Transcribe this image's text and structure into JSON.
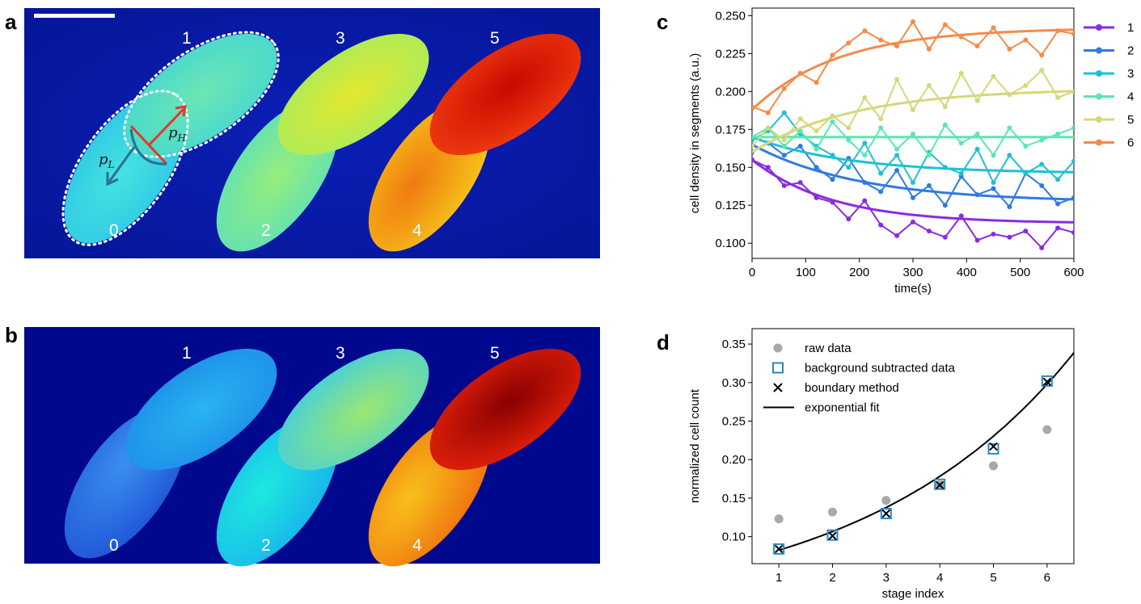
{
  "panels": {
    "a": {
      "label": "a",
      "segments": [
        "0",
        "1",
        "2",
        "3",
        "4",
        "5"
      ],
      "arrow_low": {
        "text": "p",
        "sub": "L"
      },
      "arrow_high": {
        "text": "p",
        "sub": "H"
      },
      "colors": [
        "#38d7e2",
        "#4fe0c6",
        "#7ef08c",
        "#c6f04a",
        "#f4a019",
        "#dc2c0c"
      ]
    },
    "b": {
      "label": "b",
      "segments": [
        "0",
        "1",
        "2",
        "3",
        "4",
        "5"
      ],
      "colors": [
        "#2b6ee8",
        "#22a2f0",
        "#19cee0",
        "#86e68a",
        "#f7b20f",
        "#c10c00"
      ]
    }
  },
  "chart_data": [
    {
      "panel": "c",
      "type": "line",
      "title": "",
      "xlabel": "time(s)",
      "ylabel": "cell density in segments (a.u.)",
      "xlim": [
        0,
        600
      ],
      "ylim": [
        0.09,
        0.255
      ],
      "xticks": [
        "0",
        "100",
        "200",
        "300",
        "400",
        "500",
        "600"
      ],
      "yticks": [
        "0.100",
        "0.125",
        "0.150",
        "0.175",
        "0.200",
        "0.225",
        "0.250"
      ],
      "legend_position": "outside-right",
      "series": [
        {
          "name": "1",
          "color": "#8a2be2",
          "fit": {
            "start": 0.155,
            "end": 0.113,
            "tau": 150
          },
          "x": [
            0,
            30,
            60,
            90,
            120,
            150,
            180,
            210,
            240,
            270,
            300,
            330,
            360,
            390,
            420,
            450,
            480,
            510,
            540,
            570,
            600
          ],
          "values": [
            0.155,
            0.15,
            0.138,
            0.14,
            0.13,
            0.127,
            0.116,
            0.128,
            0.112,
            0.105,
            0.114,
            0.108,
            0.104,
            0.118,
            0.102,
            0.106,
            0.104,
            0.108,
            0.097,
            0.11,
            0.107
          ]
        },
        {
          "name": "2",
          "color": "#2f7ae0",
          "fit": {
            "start": 0.165,
            "end": 0.127,
            "tau": 200
          },
          "x": [
            0,
            30,
            60,
            90,
            120,
            150,
            180,
            210,
            240,
            270,
            300,
            330,
            360,
            390,
            420,
            450,
            480,
            510,
            540,
            570,
            600
          ],
          "values": [
            0.16,
            0.166,
            0.158,
            0.164,
            0.15,
            0.142,
            0.156,
            0.14,
            0.134,
            0.148,
            0.13,
            0.138,
            0.125,
            0.144,
            0.132,
            0.136,
            0.124,
            0.146,
            0.138,
            0.126,
            0.13
          ]
        },
        {
          "name": "3",
          "color": "#1fc0d6",
          "fit": {
            "start": 0.17,
            "end": 0.146,
            "tau": 180
          },
          "x": [
            0,
            30,
            60,
            90,
            120,
            150,
            180,
            210,
            240,
            270,
            300,
            330,
            360,
            390,
            420,
            450,
            480,
            510,
            540,
            570,
            600
          ],
          "values": [
            0.168,
            0.174,
            0.186,
            0.172,
            0.164,
            0.158,
            0.15,
            0.166,
            0.146,
            0.158,
            0.14,
            0.16,
            0.15,
            0.146,
            0.162,
            0.14,
            0.158,
            0.146,
            0.152,
            0.142,
            0.154
          ]
        },
        {
          "name": "4",
          "color": "#5ce6b2",
          "fit": {
            "start": 0.17,
            "end": 0.17,
            "tau": 200
          },
          "x": [
            0,
            30,
            60,
            90,
            120,
            150,
            180,
            210,
            240,
            270,
            300,
            330,
            360,
            390,
            420,
            450,
            480,
            510,
            540,
            570,
            600
          ],
          "values": [
            0.17,
            0.176,
            0.164,
            0.174,
            0.162,
            0.18,
            0.168,
            0.158,
            0.176,
            0.162,
            0.172,
            0.158,
            0.178,
            0.166,
            0.172,
            0.158,
            0.176,
            0.164,
            0.168,
            0.172,
            0.176
          ]
        },
        {
          "name": "5",
          "color": "#d4d87a",
          "fit": {
            "start": 0.16,
            "end": 0.202,
            "tau": 190
          },
          "x": [
            0,
            30,
            60,
            90,
            120,
            150,
            180,
            210,
            240,
            270,
            300,
            330,
            360,
            390,
            420,
            450,
            480,
            510,
            540,
            570,
            600
          ],
          "values": [
            0.164,
            0.176,
            0.168,
            0.182,
            0.174,
            0.184,
            0.176,
            0.196,
            0.182,
            0.208,
            0.188,
            0.204,
            0.19,
            0.212,
            0.194,
            0.21,
            0.198,
            0.204,
            0.214,
            0.196,
            0.2
          ]
        },
        {
          "name": "6",
          "color": "#f58a4a",
          "fit": {
            "start": 0.188,
            "end": 0.242,
            "tau": 160
          },
          "x": [
            0,
            30,
            60,
            90,
            120,
            150,
            180,
            210,
            240,
            270,
            300,
            330,
            360,
            390,
            420,
            450,
            480,
            510,
            540,
            570,
            600
          ],
          "values": [
            0.19,
            0.186,
            0.202,
            0.212,
            0.206,
            0.224,
            0.232,
            0.24,
            0.234,
            0.23,
            0.246,
            0.228,
            0.244,
            0.236,
            0.23,
            0.242,
            0.228,
            0.234,
            0.224,
            0.24,
            0.238
          ]
        }
      ]
    },
    {
      "panel": "d",
      "type": "scatter",
      "title": "",
      "xlabel": "stage index",
      "ylabel": "normalized cell count",
      "xlim": [
        0.5,
        6.5
      ],
      "ylim": [
        0.065,
        0.37
      ],
      "xticks": [
        "1",
        "2",
        "3",
        "4",
        "5",
        "6"
      ],
      "yticks": [
        "0.10",
        "0.15",
        "0.20",
        "0.25",
        "0.30",
        "0.35"
      ],
      "legend_position": "upper-left",
      "series": [
        {
          "name": "raw data",
          "marker": "circle",
          "color": "#a9a9a9",
          "x": [
            1,
            2,
            3,
            4,
            5,
            6
          ],
          "values": [
            0.123,
            0.132,
            0.147,
            0.167,
            0.192,
            0.239
          ]
        },
        {
          "name": "background subtracted data",
          "marker": "square",
          "color": "#2e86c1",
          "x": [
            1,
            2,
            3,
            4,
            5,
            6
          ],
          "values": [
            0.084,
            0.102,
            0.13,
            0.168,
            0.214,
            0.302
          ]
        },
        {
          "name": "boundary method",
          "marker": "x",
          "color": "#000000",
          "x": [
            1,
            2,
            3,
            4,
            5,
            6
          ],
          "values": [
            0.084,
            0.101,
            0.13,
            0.167,
            0.217,
            0.301
          ]
        }
      ],
      "fit": {
        "name": "exponential fit",
        "color": "#000000",
        "a": 0.0645,
        "b": 0.2568,
        "x_start": 1,
        "x_end": 6.5
      }
    }
  ]
}
